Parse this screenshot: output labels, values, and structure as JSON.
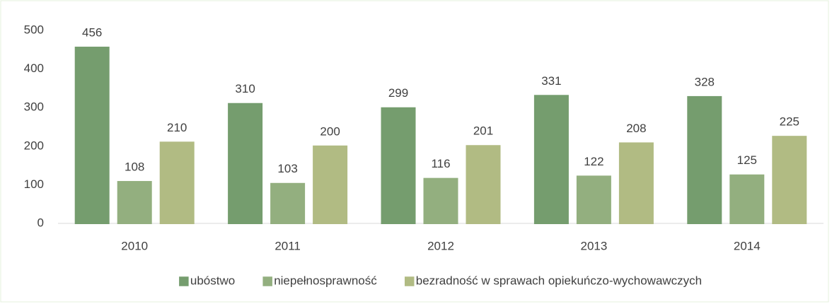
{
  "chart_data": {
    "type": "bar",
    "categories": [
      "2010",
      "2011",
      "2012",
      "2013",
      "2014"
    ],
    "series": [
      {
        "name": "ubóstwo",
        "color": "#8fbf86",
        "values": [
          456,
          310,
          299,
          331,
          328
        ]
      },
      {
        "name": "niepełnosprawność",
        "color": "#b3d69b",
        "values": [
          108,
          103,
          116,
          122,
          125
        ]
      },
      {
        "name": "bezradność w sprawach opiekuńczo-wychowawczych",
        "color": "#d8e4a0",
        "values": [
          210,
          200,
          201,
          208,
          225
        ]
      }
    ],
    "ylim": [
      0,
      500
    ],
    "yticks": [
      0,
      100,
      200,
      300,
      400,
      500
    ],
    "grid": false,
    "legend": "bottom"
  }
}
